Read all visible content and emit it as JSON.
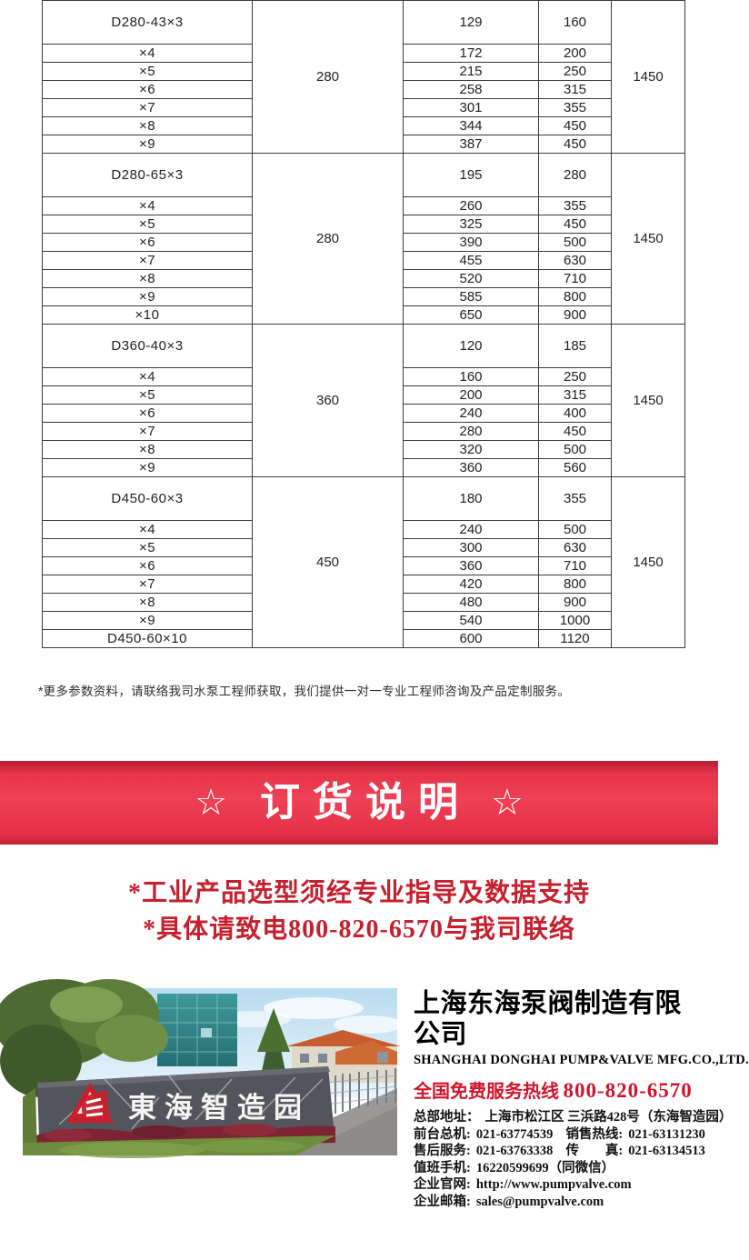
{
  "table": {
    "blocks": [
      {
        "flow": "280",
        "speed": "1450",
        "rows": [
          [
            "D280-43×3",
            "129",
            "160"
          ],
          [
            "×4",
            "172",
            "200"
          ],
          [
            "×5",
            "215",
            "250"
          ],
          [
            "×6",
            "258",
            "315"
          ],
          [
            "×7",
            "301",
            "355"
          ],
          [
            "×8",
            "344",
            "450"
          ],
          [
            "×9",
            "387",
            "450"
          ]
        ]
      },
      {
        "flow": "280",
        "speed": "1450",
        "rows": [
          [
            "D280-65×3",
            "195",
            "280"
          ],
          [
            "×4",
            "260",
            "355"
          ],
          [
            "×5",
            "325",
            "450"
          ],
          [
            "×6",
            "390",
            "500"
          ],
          [
            "×7",
            "455",
            "630"
          ],
          [
            "×8",
            "520",
            "710"
          ],
          [
            "×9",
            "585",
            "800"
          ],
          [
            "×10",
            "650",
            "900"
          ]
        ]
      },
      {
        "flow": "360",
        "speed": "1450",
        "rows": [
          [
            "D360-40×3",
            "120",
            "185"
          ],
          [
            "×4",
            "160",
            "250"
          ],
          [
            "×5",
            "200",
            "315"
          ],
          [
            "×6",
            "240",
            "400"
          ],
          [
            "×7",
            "280",
            "450"
          ],
          [
            "×8",
            "320",
            "500"
          ],
          [
            "×9",
            "360",
            "560"
          ]
        ]
      },
      {
        "flow": "450",
        "speed": "1450",
        "rows": [
          [
            "D450-60×3",
            "180",
            "355"
          ],
          [
            "×4",
            "240",
            "500"
          ],
          [
            "×5",
            "300",
            "630"
          ],
          [
            "×6",
            "360",
            "710"
          ],
          [
            "×7",
            "420",
            "800"
          ],
          [
            "×8",
            "480",
            "900"
          ],
          [
            "×9",
            "540",
            "1000"
          ],
          [
            "D450-60×10",
            "600",
            "1120"
          ]
        ]
      }
    ]
  },
  "note": "*更多参数资料，请联络我司水泵工程师获取，我们提供一对一专业工程师咨询及产品定制服务。",
  "banner": {
    "title": "订货说明",
    "star_left": "☆",
    "star_right": "☆"
  },
  "notice_lines": [
    "*工业产品选型须经专业指导及数据支持",
    "*具体请致电800-820-6570与我司联络"
  ],
  "footer": {
    "company_cn": "上海东海泵阀制造有限公司",
    "company_en": "SHANGHAI DONGHAI PUMP&VALVE MFG.CO.,LTD.",
    "hotline_label": "全国免费服务热线",
    "hotline_number": "800-820-6570",
    "contact_lines": [
      [
        {
          "label": "总部地址：",
          "value": "上海市松江区 三浜路428号（东海智造园）"
        }
      ],
      [
        {
          "label": "前台总机:",
          "value": "021-63774539"
        },
        {
          "label": "销售热线:",
          "value": "021-63131230"
        }
      ],
      [
        {
          "label": "售后服务:",
          "value": "021-63763338"
        },
        {
          "label": "传　　真:",
          "value": "021-63134513"
        }
      ],
      [
        {
          "label": "值班手机:",
          "value": "16220599699（同微信）"
        }
      ],
      [
        {
          "label": "企业官网:",
          "value": "http://www.pumpvalve.com"
        }
      ],
      [
        {
          "label": "企业邮箱:",
          "value": "sales@pumpvalve.com"
        }
      ]
    ],
    "photo_sign_text": "東海智造园"
  },
  "colors": {
    "banner_red": "#ee4156",
    "notice_red": "#c5202e",
    "hotline_red": "#d1142b",
    "logo_red": "#c7202c"
  }
}
